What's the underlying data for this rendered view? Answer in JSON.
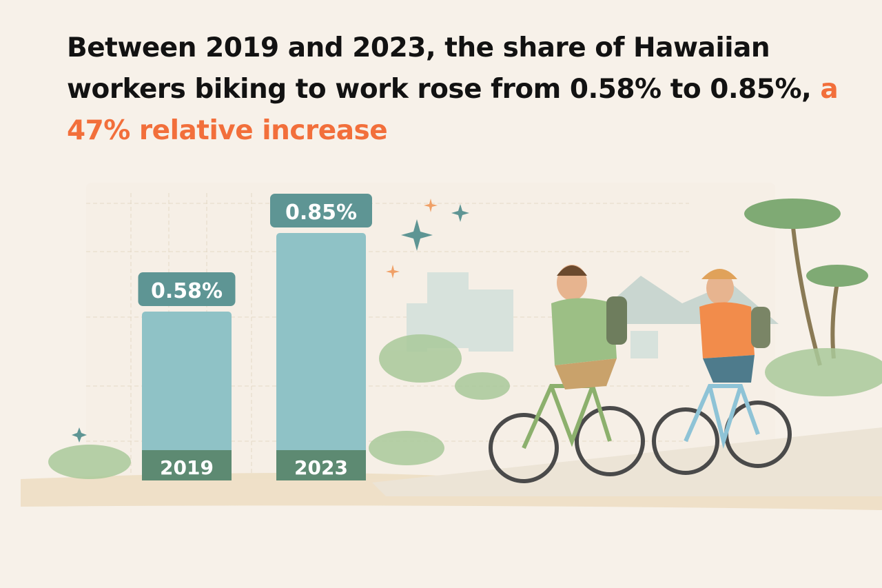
{
  "headline": {
    "text": "Between 2019 and 2023, the share of Hawaiian workers biking to work rose from 0.58% to 0.85%,",
    "highlight": "a 47% relative increase",
    "highlight_color": "#f26f3b"
  },
  "chart_data": {
    "type": "bar",
    "categories": [
      "2019",
      "2023"
    ],
    "values": [
      0.58,
      0.85
    ],
    "data_labels": [
      "0.58%",
      "0.85%"
    ],
    "title": "",
    "xlabel": "",
    "ylabel": "",
    "ylim": [
      0,
      1.0
    ],
    "grid": true,
    "bar_color": "#8fc2c6",
    "label_color": "#5e9594",
    "base_color": "#5d8a72"
  },
  "illustration": {
    "description_icons": [
      "two-cyclists-icon",
      "palm-tree-icon",
      "city-buildings-icon",
      "sparkle-icon"
    ]
  }
}
